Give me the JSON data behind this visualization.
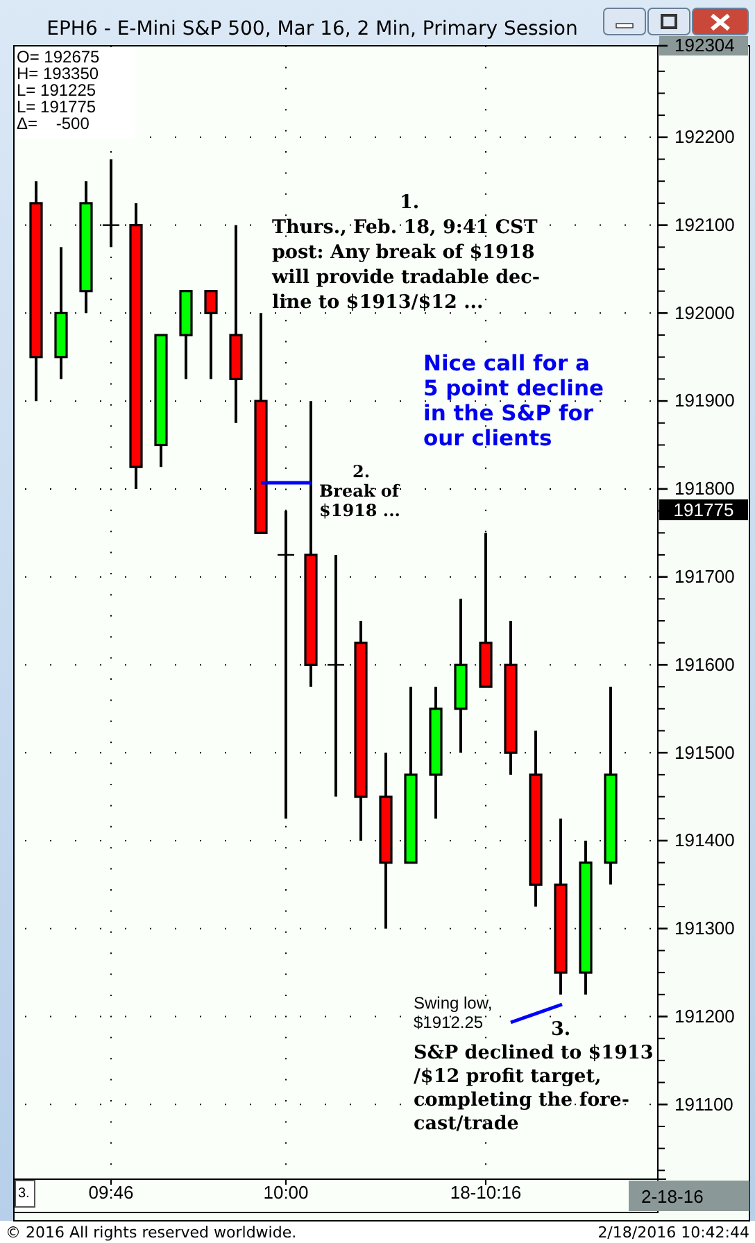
{
  "chart_data": {
    "type": "candlestick",
    "title": "EPH6 - E-Mini S&P 500, Mar 16, 2 Min, Primary Session",
    "categories": [
      null,
      null,
      null,
      "09:46",
      null,
      null,
      null,
      null,
      null,
      null,
      "10:00",
      null,
      null,
      null,
      null,
      null,
      null,
      null,
      "18-10:16",
      null,
      null,
      null,
      null,
      null
    ],
    "ohlc": [
      [
        192125,
        192150,
        191900,
        191950
      ],
      [
        191950,
        192075,
        191925,
        192000
      ],
      [
        192025,
        192150,
        192000,
        192125
      ],
      [
        192100,
        192175,
        192075,
        192100
      ],
      [
        192100,
        192125,
        191800,
        191825
      ],
      [
        191850,
        191975,
        191825,
        191975
      ],
      [
        191975,
        192025,
        191925,
        192025
      ],
      [
        192025,
        192025,
        191925,
        192000
      ],
      [
        191975,
        192100,
        191875,
        191925
      ],
      [
        191900,
        192000,
        191750,
        191750
      ],
      [
        191725,
        191775,
        191425,
        191725
      ],
      [
        191725,
        191900,
        191575,
        191600
      ],
      [
        191600,
        191725,
        191450,
        191600
      ],
      [
        191625,
        191650,
        191400,
        191450
      ],
      [
        191450,
        191500,
        191300,
        191375
      ],
      [
        191375,
        191575,
        191375,
        191475
      ],
      [
        191475,
        191575,
        191425,
        191550
      ],
      [
        191550,
        191675,
        191500,
        191600
      ],
      [
        191625,
        191750,
        191575,
        191575
      ],
      [
        191600,
        191650,
        191475,
        191500
      ],
      [
        191475,
        191525,
        191325,
        191350
      ],
      [
        191350,
        191425,
        191225,
        191250
      ],
      [
        191250,
        191400,
        191225,
        191375
      ],
      [
        191375,
        191575,
        191350,
        191475
      ]
    ],
    "colors": [
      "#ff0000",
      "#00ff00",
      "#00ff00",
      "#000000",
      "#ff0000",
      "#00ff00",
      "#00ff00",
      "#ff0000",
      "#ff0000",
      "#ff0000",
      "#000000",
      "#ff0000",
      "#000000",
      "#ff0000",
      "#ff0000",
      "#00ff00",
      "#00ff00",
      "#00ff00",
      "#ff0000",
      "#ff0000",
      "#ff0000",
      "#ff0000",
      "#00ff00",
      "#00ff00"
    ],
    "ylim": [
      191015,
      192304
    ],
    "yticks": [
      191100,
      191200,
      191300,
      191400,
      191500,
      191600,
      191700,
      191800,
      191900,
      192000,
      192100,
      192200,
      192304
    ],
    "grid": true,
    "annotations": [
      "O= 192675",
      "H= 193350",
      "L= 191225",
      "L= 191775",
      "Δ=    -500",
      "1.\nThurs., Feb. 18, 9:41 CST\npost: Any break of $1918\nwill provide tradable dec-\nline to $1913/$12 ...",
      "Nice call for a\n5 point decline\nin the S&P for\nour clients",
      "2.\nBreak of\n$1918 ...",
      "Swing low,\n$1912.25",
      "3.\nS&P declined to $1913\n/$12 profit target,\ncompleting the fore-\ncast/trade",
      "191775",
      "2-18-16",
      "3.",
      "© 2016 All rights reserved worldwide.",
      "2/18/2016 10:42:44"
    ]
  }
}
